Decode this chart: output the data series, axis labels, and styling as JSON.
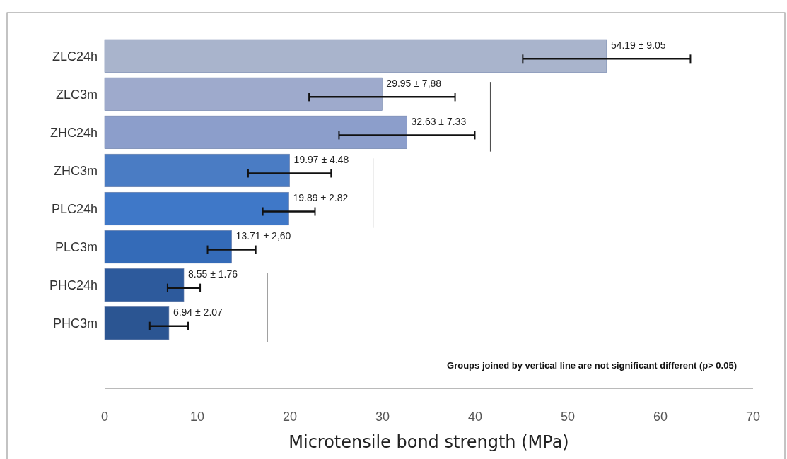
{
  "chart_data": {
    "type": "bar",
    "orientation": "horizontal",
    "xlabel": "Microtensile bond strength (MPa)",
    "categories": [
      "ZLC24h",
      "ZLC3m",
      "ZHC24h",
      "ZHC3m",
      "PLC24h",
      "PLC3m",
      "PHC24h",
      "PHC3m"
    ],
    "values": [
      54.19,
      29.95,
      32.63,
      19.97,
      19.89,
      13.71,
      8.55,
      6.94
    ],
    "errors": [
      9.05,
      7.88,
      7.33,
      4.48,
      2.82,
      2.6,
      1.76,
      2.07
    ],
    "value_labels": [
      "54.19 ± 9.05",
      "29.95 ± 7,88",
      "32.63 ± 7.33",
      "19.97 ± 4.48",
      "19.89 ± 2.82",
      "13.71 ± 2,60",
      "8.55 ± 1.76",
      "6.94 ± 2.07"
    ],
    "colors": [
      "#a9b4cc",
      "#9eaacc",
      "#8c9ecb",
      "#4a7cc4",
      "#3f78c8",
      "#346bb8",
      "#2d5a9c",
      "#2b5592"
    ],
    "xlim": [
      0,
      70
    ],
    "xticks": [
      0,
      10,
      20,
      30,
      40,
      50,
      60,
      70
    ],
    "grid": false,
    "annotations": [
      "Groups joined by vertical line are not significant different (p> 0.05)"
    ]
  }
}
